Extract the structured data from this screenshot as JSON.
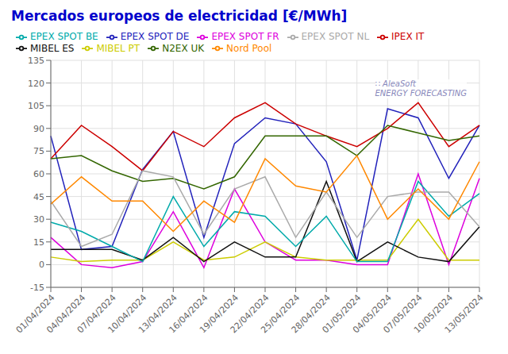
{
  "chart_data": {
    "type": "line",
    "title": "Mercados europeos de electricidad [€/MWh]",
    "title_color": "#0000cc",
    "annotations": [
      "∷ AleaSoft\nENERGY FORECASTING"
    ],
    "categories": [
      "01/04/2024",
      "04/04/2024",
      "07/04/2024",
      "10/04/2024",
      "13/04/2024",
      "16/04/2024",
      "19/04/2024",
      "22/04/2024",
      "25/04/2024",
      "28/04/2024",
      "01/05/2024",
      "04/05/2024",
      "07/05/2024",
      "10/05/2024",
      "13/05/2024"
    ],
    "ylim": [
      -15,
      135
    ],
    "yticks": [
      -15,
      0,
      15,
      30,
      45,
      60,
      75,
      90,
      105,
      120,
      135
    ],
    "grid": true,
    "legend": "top",
    "series": [
      {
        "name": "EPEX SPOT DE",
        "color": "#2222bb",
        "values": [
          85,
          10,
          12,
          63,
          88,
          18,
          80,
          97,
          93,
          68,
          3,
          103,
          97,
          57,
          92
        ]
      },
      {
        "name": "EPEX SPOT FR",
        "color": "#dd00dd",
        "values": [
          18,
          0,
          -2,
          2,
          35,
          -2,
          50,
          15,
          3,
          3,
          0,
          0,
          60,
          0,
          57
        ]
      },
      {
        "name": "MIBEL PT",
        "color": "#cccc00",
        "values": [
          5,
          2,
          3,
          3,
          15,
          3,
          5,
          15,
          5,
          3,
          3,
          3,
          30,
          3,
          3
        ]
      },
      {
        "name": "MIBEL ES",
        "color": "#111111",
        "values": [
          10,
          10,
          10,
          3,
          18,
          2,
          15,
          5,
          5,
          55,
          2,
          15,
          5,
          2,
          25
        ]
      },
      {
        "name": "IPEX IT",
        "color": "#cc0000",
        "values": [
          70,
          92,
          78,
          62,
          88,
          78,
          97,
          107,
          93,
          85,
          78,
          90,
          107,
          78,
          92
        ]
      },
      {
        "name": "N2EX UK",
        "color": "#336600",
        "values": [
          70,
          72,
          62,
          55,
          57,
          50,
          58,
          85,
          85,
          85,
          72,
          92,
          87,
          82,
          85
        ]
      },
      {
        "name": "EPEX SPOT BE",
        "color": "#00aaaa",
        "values": [
          28,
          22,
          12,
          2,
          45,
          12,
          35,
          32,
          12,
          32,
          2,
          2,
          55,
          32,
          47
        ]
      },
      {
        "name": "EPEX SPOT NL",
        "color": "#aaaaaa",
        "values": [
          42,
          12,
          20,
          62,
          58,
          20,
          50,
          58,
          18,
          48,
          18,
          45,
          48,
          48,
          25
        ]
      },
      {
        "name": "Nord Pool",
        "color": "#ff8800",
        "values": [
          40,
          58,
          42,
          42,
          22,
          42,
          28,
          70,
          52,
          48,
          72,
          30,
          50,
          30,
          68
        ]
      }
    ]
  }
}
